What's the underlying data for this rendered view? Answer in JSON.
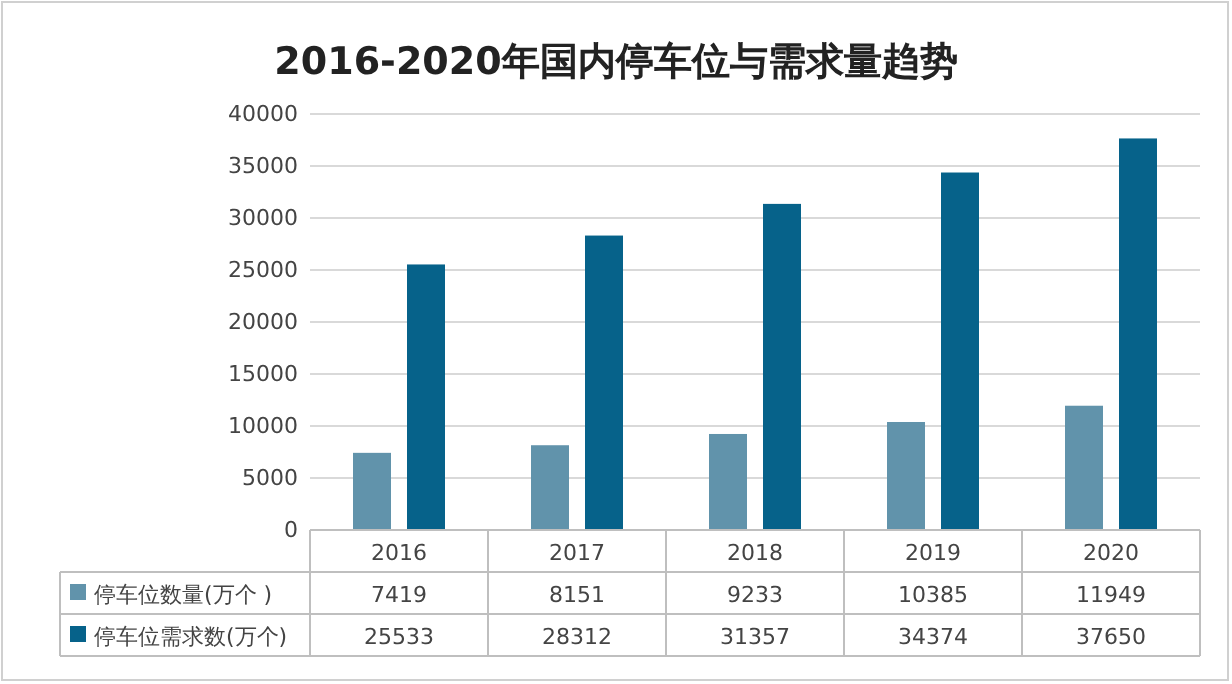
{
  "chart_data": {
    "type": "bar",
    "title": "2016-2020年国内停车位与需求量趋势",
    "categories": [
      "2016",
      "2017",
      "2018",
      "2019",
      "2020"
    ],
    "series": [
      {
        "name": "停车位数量(万个 )",
        "color": "#6193ab",
        "values": [
          7419,
          8151,
          9233,
          10385,
          11949
        ]
      },
      {
        "name": "停车位需求数(万个)",
        "color": "#06628a",
        "values": [
          25533,
          28312,
          31357,
          34374,
          37650
        ]
      }
    ],
    "ylim": [
      0,
      40000
    ],
    "yticks": [
      0,
      5000,
      10000,
      15000,
      20000,
      25000,
      30000,
      35000,
      40000
    ],
    "grid": "y",
    "legend": "bottom",
    "data_labels": true
  }
}
